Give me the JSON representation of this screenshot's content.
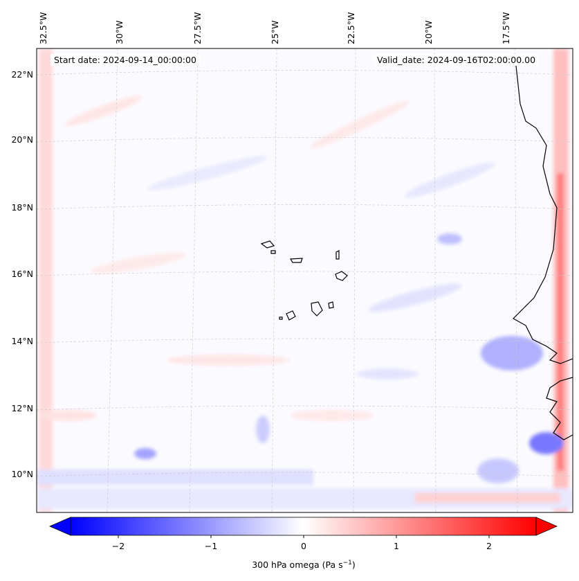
{
  "map": {
    "start_date": "Start date: 2024-09-14_00:00:00",
    "valid_date": "Valid_date: 2024-09-16T02:00:00.00",
    "lat_labels": [
      "22°N",
      "20°N",
      "18°N",
      "16°N",
      "14°N",
      "12°N",
      "10°N"
    ],
    "lon_labels": [
      "32.5°W",
      "30°W",
      "27.5°W",
      "25°W",
      "22.5°W",
      "20°W",
      "17.5°W"
    ],
    "colorbar": {
      "label": "300 hPa omega (Pa s",
      "label_exp": "−1",
      "label_end": ")",
      "ticks": [
        "−2",
        "−1",
        "0",
        "1",
        "2"
      ],
      "min": -2.5,
      "max": 2.5,
      "low_color": "#0000ff",
      "mid_color": "#ffffff",
      "high_color": "#ff0000"
    }
  }
}
